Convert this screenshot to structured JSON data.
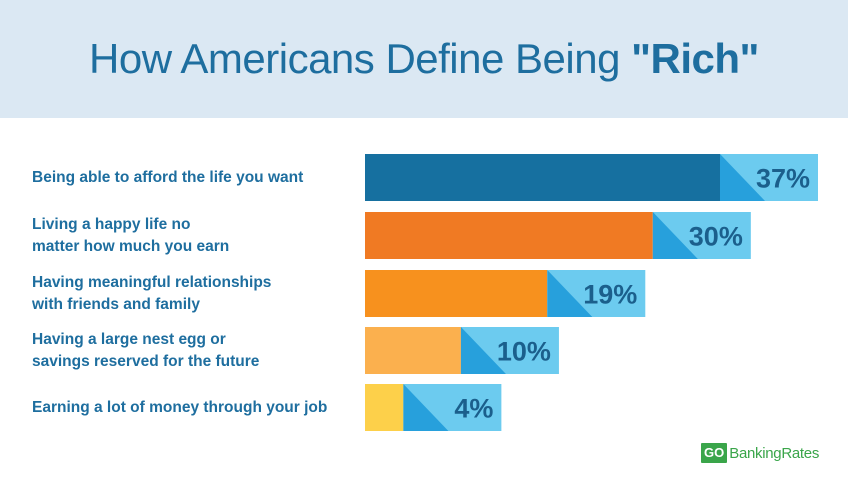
{
  "title": {
    "prefix": "How Americans Define Being ",
    "emphasis": "\"Rich\""
  },
  "chart_data": {
    "type": "bar",
    "orientation": "horizontal",
    "categories": [
      "Being able to afford the life you want",
      "Living a happy life no\nmatter how much you earn",
      "Having meaningful relationships\nwith friends and family",
      "Having a large nest egg or\nsavings reserved for the future",
      "Earning a lot of money through your job"
    ],
    "values": [
      37,
      30,
      19,
      10,
      4
    ],
    "value_labels": [
      "37%",
      "30%",
      "19%",
      "10%",
      "4%"
    ],
    "unit": "%",
    "bar_colors": [
      "#1670a0",
      "#f07a23",
      "#f7911e",
      "#fbb04e",
      "#fdd04a"
    ],
    "label_box_colors": [
      "#27a0dc",
      "#6ccbef"
    ],
    "legend": "none",
    "grid": false
  },
  "logo": {
    "badge": "GO",
    "text": "BankingRates",
    "color": "#3aa54a"
  }
}
